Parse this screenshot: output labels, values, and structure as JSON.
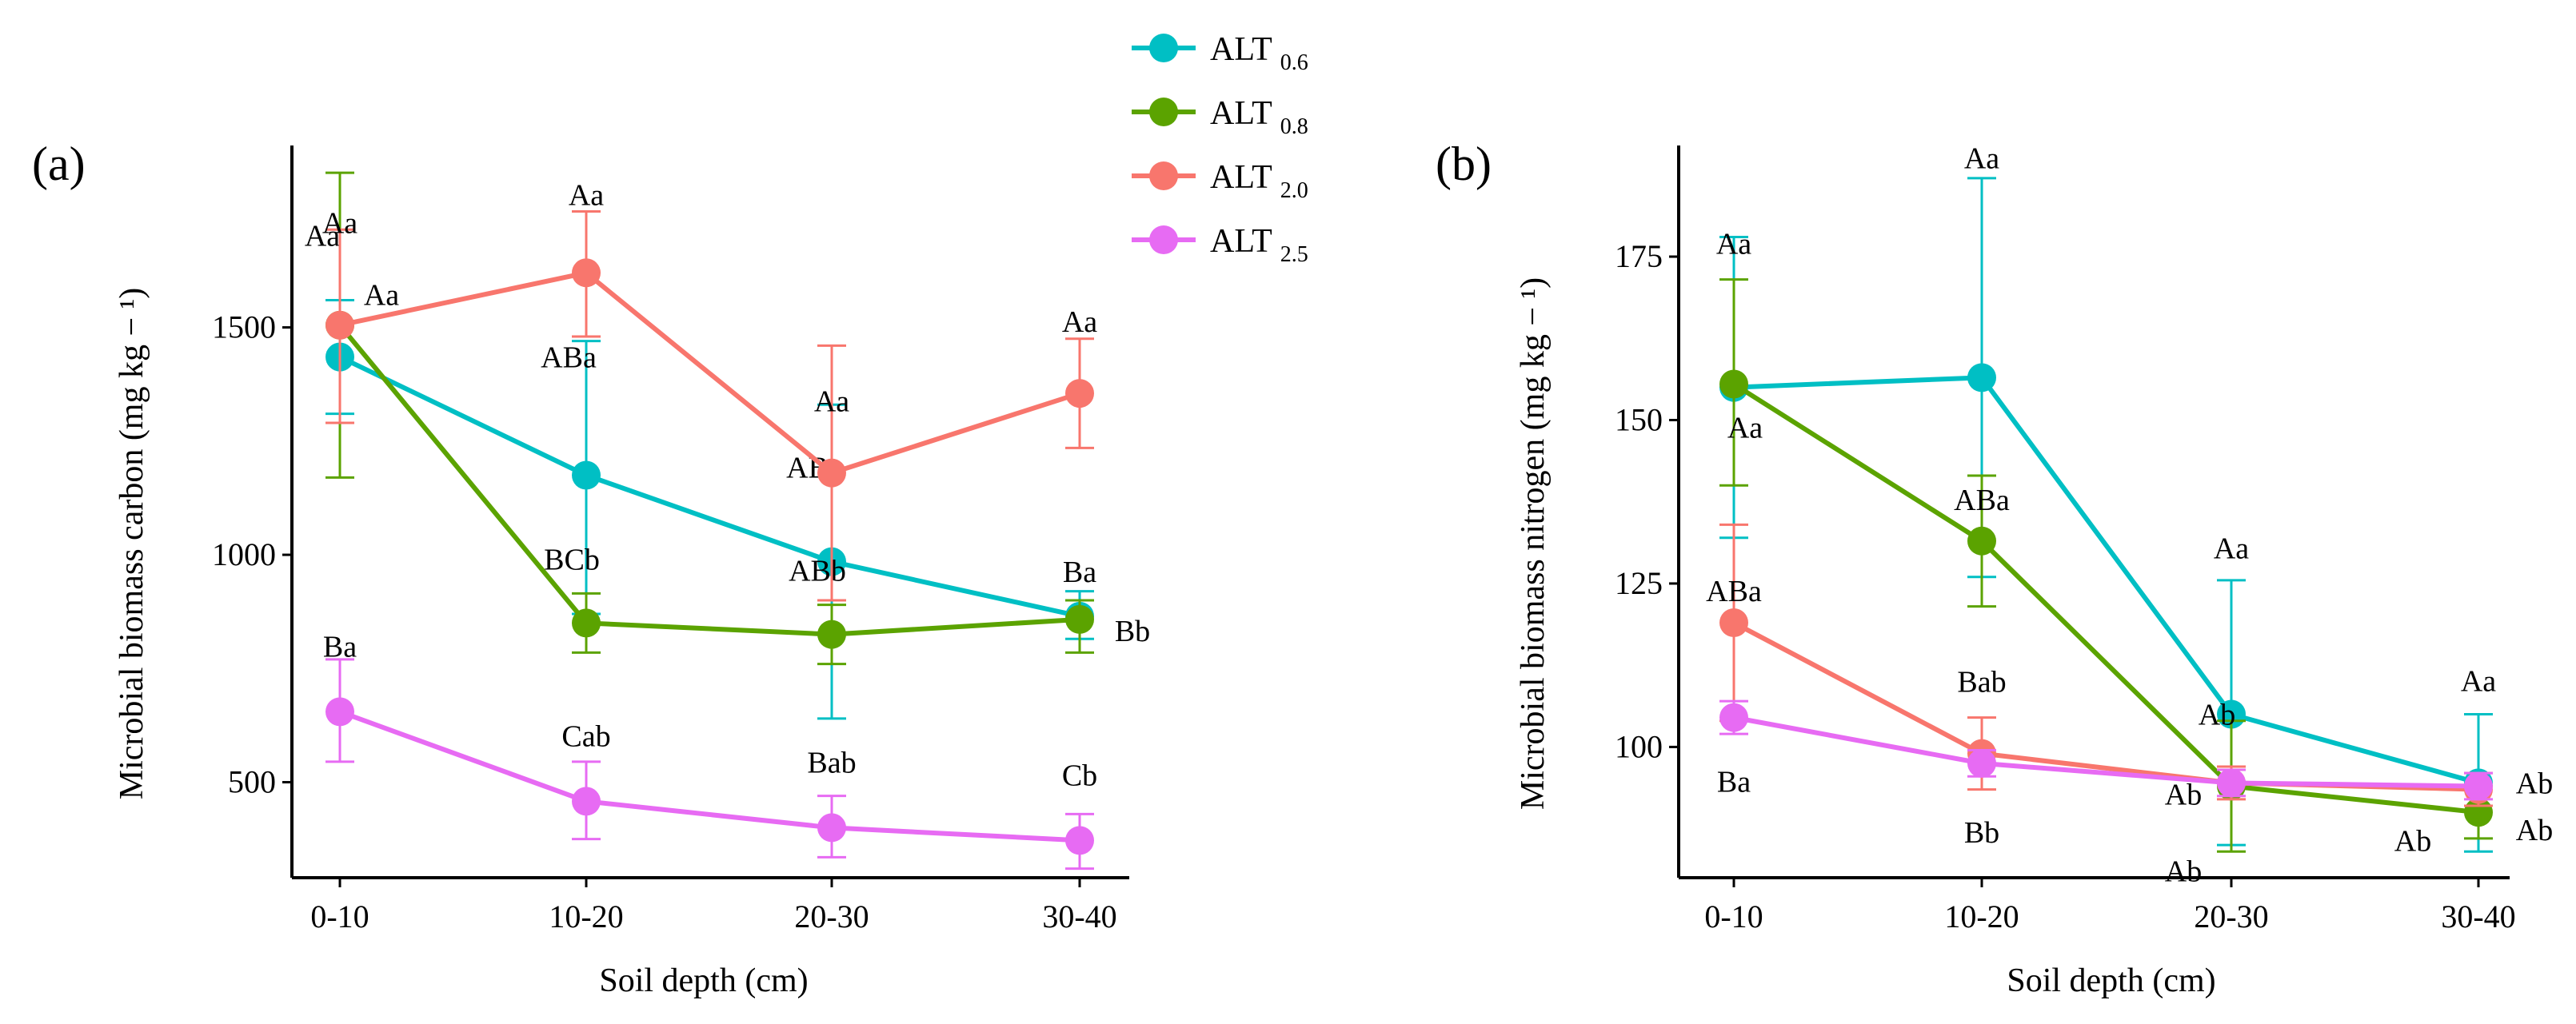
{
  "legend": {
    "title": "",
    "entries": [
      {
        "base": "ALT",
        "sub": "0.6",
        "color": "#00BFC4"
      },
      {
        "base": "ALT",
        "sub": "0.8",
        "color": "#5BA300"
      },
      {
        "base": "ALT",
        "sub": "2.0",
        "color": "#F8766D"
      },
      {
        "base": "ALT",
        "sub": "2.5",
        "color": "#E76BF3"
      }
    ]
  },
  "chart_data": [
    {
      "panel": "(a)",
      "type": "line",
      "xlabel": "Soil depth (cm)",
      "ylabel": "Microbial biomass carbon (mg kg − ¹)",
      "categories": [
        "0-10",
        "10-20",
        "20-30",
        "30-40"
      ],
      "ylim": [
        290,
        1900
      ],
      "yticks": [
        500,
        1000,
        1500
      ],
      "series": [
        {
          "name": "ALT 0.6",
          "color": "#00BFC4",
          "values": [
            1435,
            1175,
            985,
            865
          ],
          "err_low": [
            1310,
            870,
            640,
            815
          ],
          "err_high": [
            1560,
            1470,
            1330,
            920
          ],
          "labels": [
            "Aa",
            "ABa",
            "ABa",
            "Ba"
          ]
        },
        {
          "name": "ALT 0.8",
          "color": "#5BA300",
          "values": [
            1505,
            850,
            825,
            858
          ],
          "err_low": [
            1170,
            785,
            760,
            785
          ],
          "err_high": [
            1840,
            915,
            890,
            900
          ],
          "labels": [
            "Aa",
            "BCb",
            "ABb",
            "Bb"
          ]
        },
        {
          "name": "ALT 2.0",
          "color": "#F8766D",
          "values": [
            1505,
            1620,
            1180,
            1355
          ],
          "err_low": [
            1290,
            1480,
            900,
            1235
          ],
          "err_high": [
            1715,
            1755,
            1460,
            1475
          ],
          "labels": [
            "Aa",
            "Aa",
            "Aa",
            "Aa"
          ]
        },
        {
          "name": "ALT 2.5",
          "color": "#E76BF3",
          "values": [
            655,
            458,
            400,
            372
          ],
          "err_low": [
            545,
            375,
            335,
            310
          ],
          "err_high": [
            770,
            545,
            470,
            430
          ],
          "labels": [
            "Ba",
            "Cab",
            "Bab",
            "Cb"
          ]
        }
      ]
    },
    {
      "panel": "(b)",
      "type": "line",
      "xlabel": "Soil depth (cm)",
      "ylabel": "Microbial biomass nitrogen (mg kg − ¹)",
      "categories": [
        "0-10",
        "10-20",
        "20-30",
        "30-40"
      ],
      "ylim": [
        80,
        192
      ],
      "yticks": [
        100,
        125,
        150,
        175
      ],
      "series": [
        {
          "name": "ALT 0.6",
          "color": "#00BFC4",
          "values": [
            155,
            156.5,
            105,
            94.5
          ],
          "err_low": [
            132,
            126,
            85,
            84
          ],
          "err_high": [
            178,
            187,
            125.5,
            105
          ],
          "labels": [
            "Aa",
            "Aa",
            "Aa",
            "Aa"
          ]
        },
        {
          "name": "ALT 0.8",
          "color": "#5BA300",
          "values": [
            155.5,
            131.5,
            94,
            90
          ],
          "err_low": [
            140,
            121.5,
            84,
            86
          ],
          "err_high": [
            171.5,
            141.5,
            104,
            94
          ],
          "labels": [
            "Aa",
            "ABa",
            "Ab",
            "Ab"
          ]
        },
        {
          "name": "ALT 2.0",
          "color": "#F8766D",
          "values": [
            119,
            99,
            94.5,
            93.5
          ],
          "err_low": [
            104,
            93.5,
            92,
            91
          ],
          "err_high": [
            134,
            104.5,
            97,
            96
          ],
          "labels": [
            "ABa",
            "Bab",
            "Ab",
            "Ab"
          ]
        },
        {
          "name": "ALT 2.5",
          "color": "#E76BF3",
          "values": [
            104.5,
            97.5,
            94.5,
            94
          ],
          "err_low": [
            102,
            95.5,
            92.5,
            92
          ],
          "err_high": [
            107,
            99.5,
            96.5,
            96
          ],
          "labels": [
            "Ba",
            "Bb",
            "Ab",
            "Ab"
          ]
        }
      ]
    }
  ]
}
